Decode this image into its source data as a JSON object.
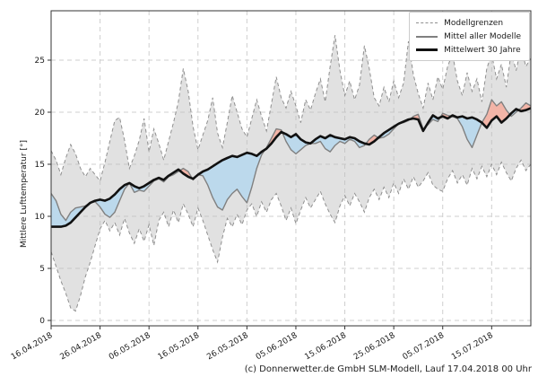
{
  "chart_data": {
    "type": "line",
    "title": "",
    "ylabel": "Mittlere Lufttemperatur [°]",
    "xlabel": "",
    "ylim": [
      -0.5,
      29.7
    ],
    "yticks": [
      0,
      5,
      10,
      15,
      20,
      25
    ],
    "grid": true,
    "legend_position": "upper right",
    "start_date": "16.04.2018",
    "n_days": 99,
    "xtick_day_index": [
      0,
      10,
      20,
      30,
      40,
      50,
      60,
      70,
      80,
      90
    ],
    "xtick_labels": [
      "16.04.2018",
      "26.04.2018",
      "06.05.2018",
      "16.05.2018",
      "26.05.2018",
      "05.06.2018",
      "15.06.2018",
      "25.06.2018",
      "05.07.2018",
      "15.07.2018"
    ],
    "legend": [
      {
        "label": "Modellgrenzen",
        "style": "dashed-gray"
      },
      {
        "label": "Mittel aller Modelle",
        "style": "solid-gray"
      },
      {
        "label": "Mittelwert 30 Jahre",
        "style": "thick-black"
      }
    ],
    "colors": {
      "band_fill": "rgba(188,188,188,0.45)",
      "bound_stroke": "#8f8f8f",
      "grid": "#cfcfcf",
      "model_mean": "#808080",
      "mean30": "#111111",
      "warm_fill": "#f2b4a7",
      "cold_fill": "#bcd9ec",
      "spine": "#333333",
      "tick_text": "#1a1a1a"
    },
    "series": [
      {
        "name": "Modellgrenzen (obere Grenze)",
        "values": [
          16.3,
          15.4,
          14.0,
          15.6,
          16.9,
          16.0,
          14.6,
          13.8,
          14.6,
          14.0,
          13.4,
          15.2,
          17.2,
          19.2,
          19.5,
          17.3,
          14.6,
          15.8,
          17.3,
          19.4,
          16.2,
          18.4,
          17.0,
          15.4,
          17.2,
          19.0,
          21.0,
          24.2,
          22.0,
          18.6,
          16.4,
          17.8,
          19.2,
          21.4,
          18.0,
          16.6,
          19.0,
          21.6,
          20.0,
          18.4,
          17.6,
          19.4,
          21.2,
          19.6,
          18.2,
          20.8,
          23.4,
          21.4,
          20.4,
          22.0,
          20.6,
          19.0,
          21.2,
          20.2,
          21.8,
          23.2,
          21.0,
          24.4,
          27.4,
          24.0,
          21.6,
          23.0,
          21.2,
          22.6,
          26.4,
          24.2,
          21.4,
          20.6,
          22.4,
          21.0,
          23.0,
          21.4,
          22.8,
          26.8,
          23.6,
          21.8,
          20.4,
          22.8,
          21.2,
          23.4,
          22.2,
          24.4,
          25.6,
          23.0,
          21.6,
          23.8,
          22.0,
          23.2,
          21.0,
          24.2,
          25.6,
          23.2,
          24.6,
          22.4,
          25.8,
          24.0,
          26.2,
          24.4,
          25.2
        ]
      },
      {
        "name": "Modellgrenzen (untere Grenze)",
        "values": [
          6.6,
          5.2,
          3.8,
          2.6,
          1.2,
          0.9,
          2.4,
          4.2,
          5.6,
          7.2,
          8.8,
          9.6,
          8.6,
          9.4,
          8.2,
          9.8,
          8.4,
          7.4,
          8.8,
          7.6,
          9.2,
          7.2,
          9.6,
          10.4,
          9.0,
          10.6,
          9.4,
          11.2,
          10.2,
          9.0,
          10.8,
          9.6,
          8.2,
          6.8,
          5.6,
          8.0,
          9.8,
          9.0,
          10.2,
          9.2,
          10.6,
          11.2,
          10.0,
          11.4,
          10.4,
          11.6,
          12.2,
          11.0,
          9.6,
          10.8,
          9.3,
          10.6,
          11.8,
          10.8,
          11.6,
          12.4,
          11.2,
          10.2,
          9.4,
          11.0,
          12.0,
          11.0,
          12.2,
          11.4,
          10.4,
          11.8,
          12.6,
          11.6,
          12.8,
          11.8,
          13.2,
          12.2,
          13.6,
          12.6,
          13.8,
          12.8,
          13.4,
          14.2,
          13.0,
          12.6,
          12.4,
          13.6,
          14.4,
          13.2,
          14.0,
          13.0,
          14.6,
          13.6,
          14.8,
          13.8,
          15.0,
          14.0,
          15.2,
          14.2,
          13.4,
          14.6,
          15.4,
          14.4,
          15.0
        ]
      },
      {
        "name": "Mittel aller Modelle",
        "values": [
          12.2,
          11.5,
          10.2,
          9.6,
          10.4,
          10.8,
          10.9,
          11.0,
          11.3,
          11.4,
          10.9,
          10.2,
          9.9,
          10.4,
          11.5,
          12.6,
          13.2,
          12.3,
          12.5,
          12.4,
          12.9,
          13.4,
          13.6,
          13.3,
          13.8,
          14.0,
          14.3,
          14.6,
          14.3,
          13.5,
          14.0,
          13.9,
          13.0,
          11.8,
          10.9,
          10.6,
          11.6,
          12.2,
          12.6,
          11.9,
          11.3,
          12.8,
          14.6,
          15.9,
          16.6,
          17.5,
          18.4,
          18.3,
          17.2,
          16.4,
          16.0,
          16.4,
          16.8,
          17.0,
          17.0,
          17.2,
          16.5,
          16.2,
          16.8,
          17.2,
          17.0,
          17.4,
          17.2,
          16.6,
          16.8,
          17.4,
          17.8,
          17.5,
          17.6,
          17.9,
          18.4,
          18.9,
          19.0,
          19.2,
          19.6,
          19.8,
          18.4,
          18.8,
          19.3,
          19.1,
          19.9,
          19.7,
          19.6,
          19.4,
          18.6,
          17.4,
          16.6,
          17.8,
          19.0,
          19.8,
          21.2,
          20.6,
          21.0,
          20.2,
          19.6,
          20.0,
          20.4,
          20.9,
          20.6
        ]
      },
      {
        "name": "Mittelwert 30 Jahre",
        "values": [
          9.0,
          9.0,
          9.0,
          9.1,
          9.4,
          9.9,
          10.4,
          10.9,
          11.3,
          11.5,
          11.6,
          11.5,
          11.7,
          12.1,
          12.6,
          13.0,
          13.2,
          12.9,
          12.7,
          12.9,
          13.2,
          13.5,
          13.7,
          13.5,
          13.9,
          14.2,
          14.5,
          14.1,
          13.8,
          13.6,
          14.0,
          14.3,
          14.5,
          14.8,
          15.1,
          15.4,
          15.6,
          15.8,
          15.7,
          15.9,
          16.1,
          16.0,
          15.8,
          16.2,
          16.5,
          17.0,
          17.6,
          18.1,
          17.9,
          17.6,
          17.9,
          17.4,
          17.1,
          17.0,
          17.4,
          17.7,
          17.5,
          17.8,
          17.6,
          17.5,
          17.4,
          17.6,
          17.5,
          17.2,
          17.0,
          16.9,
          17.2,
          17.6,
          18.0,
          18.3,
          18.6,
          18.9,
          19.1,
          19.3,
          19.4,
          19.3,
          18.2,
          19.0,
          19.7,
          19.4,
          19.6,
          19.4,
          19.7,
          19.5,
          19.6,
          19.4,
          19.5,
          19.3,
          19.0,
          18.5,
          19.2,
          19.6,
          19.0,
          19.4,
          19.9,
          20.3,
          20.1,
          20.2,
          20.4
        ]
      }
    ],
    "caption": "(c) Donnerwetter.de GmbH SLM-Modell, Lauf 17.04.2018 00 Uhr"
  }
}
